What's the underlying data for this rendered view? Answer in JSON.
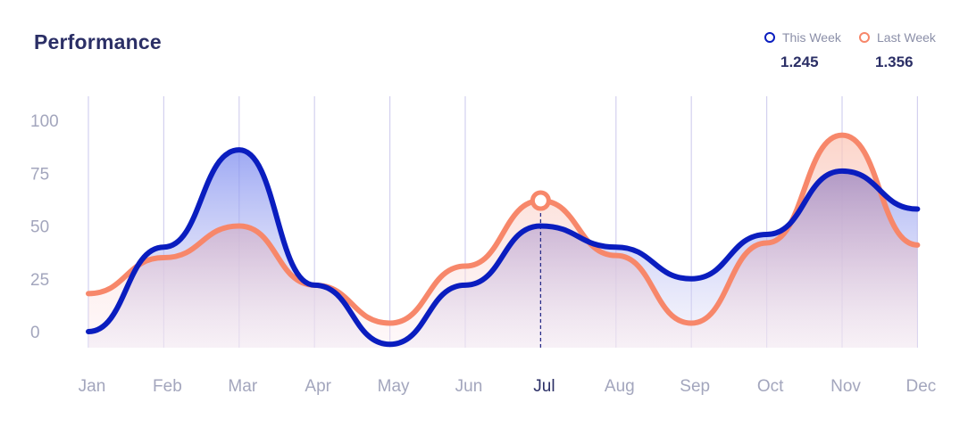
{
  "title": "Performance",
  "legend": [
    {
      "label": "This Week",
      "value": "1.245",
      "color": "#0a1dbf"
    },
    {
      "label": "Last Week",
      "value": "1.356",
      "color": "#f7876a"
    }
  ],
  "chart_data": {
    "type": "line",
    "categories": [
      "Jan",
      "Feb",
      "Mar",
      "Apr",
      "May",
      "Jun",
      "Jul",
      "Aug",
      "Sep",
      "Oct",
      "Nov",
      "Dec"
    ],
    "series": [
      {
        "name": "This Week",
        "color": "#0a1dbf",
        "values": [
          0,
          40,
          86,
          22,
          -6,
          22,
          50,
          40,
          25,
          46,
          76,
          58
        ]
      },
      {
        "name": "Last Week",
        "color": "#f7876a",
        "values": [
          18,
          35,
          50,
          22,
          4,
          31,
          62,
          36,
          4,
          42,
          93,
          41
        ]
      }
    ],
    "yticks": [
      0,
      25,
      50,
      75,
      100
    ],
    "ylim": [
      0,
      100
    ],
    "highlight_category": "Jul",
    "highlight_series": "Last Week",
    "grid": "vertical"
  }
}
